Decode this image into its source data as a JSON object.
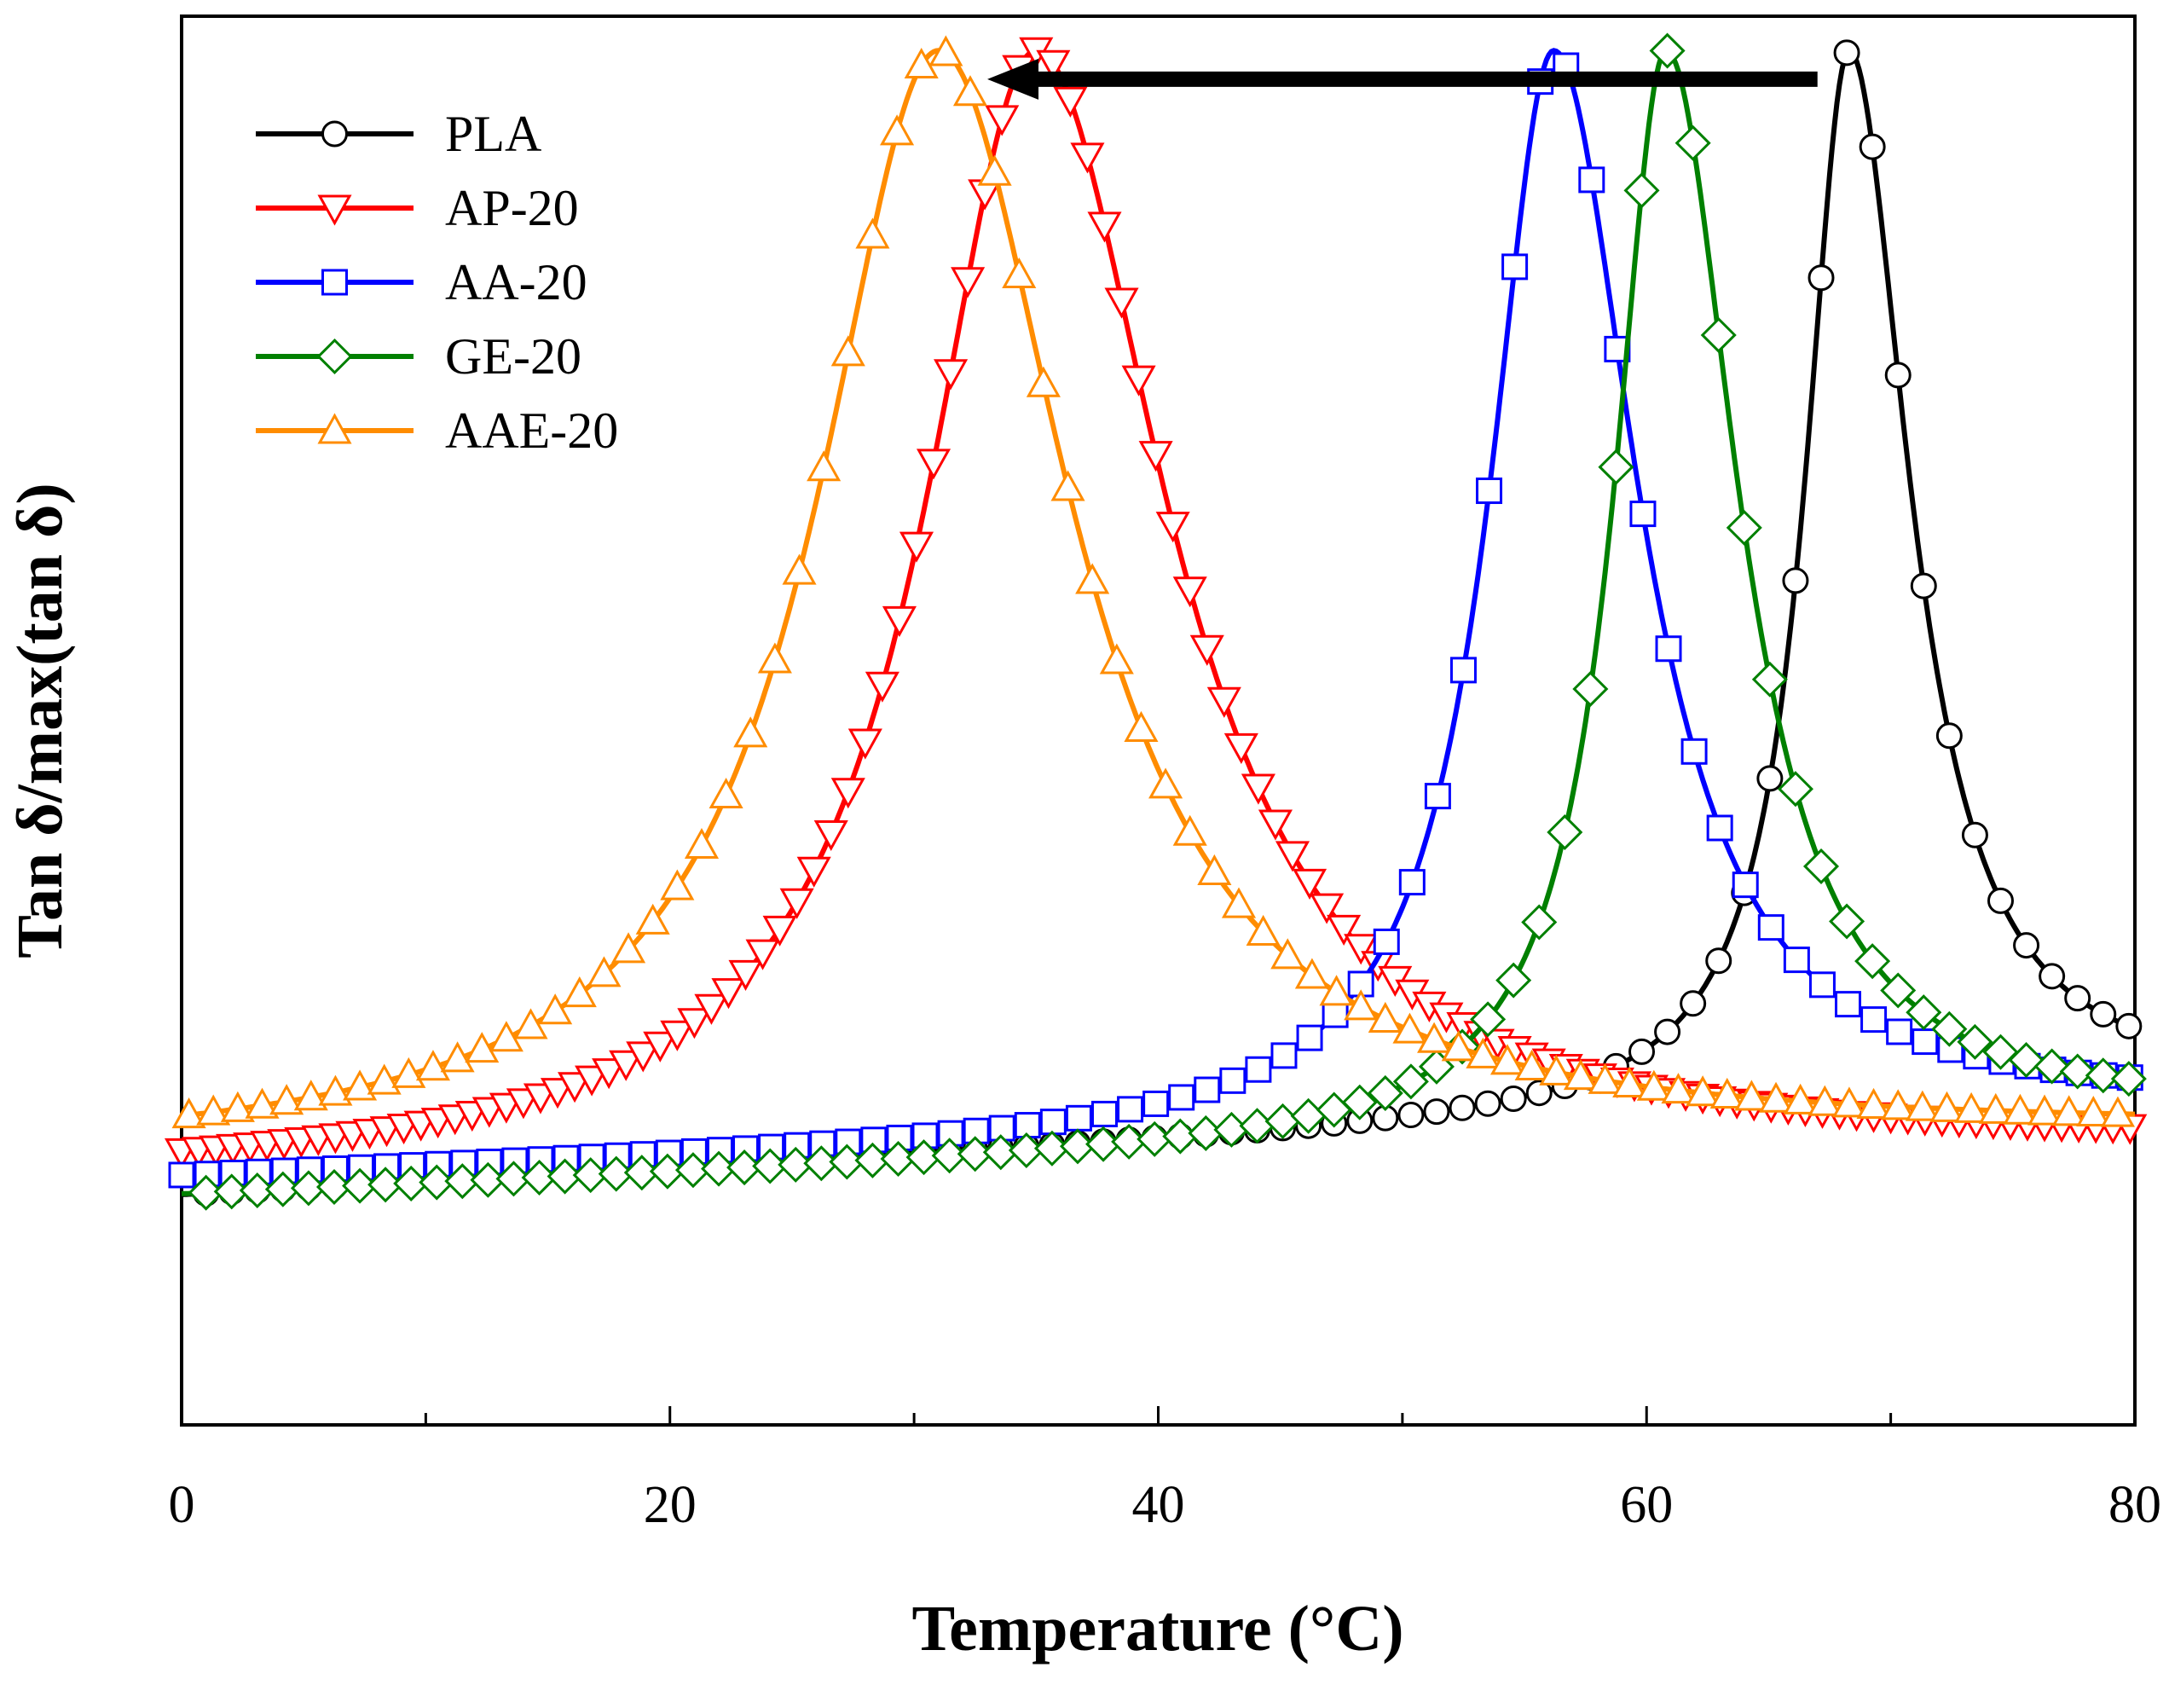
{
  "chart_data": {
    "type": "line",
    "title": "",
    "xlabel": "Temperature (°C)",
    "ylabel": "Tan δ/max(tan δ)",
    "xlim": [
      0,
      80
    ],
    "ylim": [
      -0.2,
      1.03
    ],
    "x_ticks": [
      0,
      20,
      40,
      60,
      80
    ],
    "x_tick_labels": [
      "0",
      "20",
      "40",
      "60",
      "80"
    ],
    "y_ticks_labeled": false,
    "grid": false,
    "legend_position": "top-left",
    "annotation": "arrow pointing from right to left (peak shift to lower temperature)",
    "annotation_arrow": {
      "from_x": 67,
      "to_x": 33,
      "y": 0.975
    },
    "series": [
      {
        "name": "PLA",
        "color": "#000000",
        "marker": "circle",
        "peak_x": 68.3,
        "width_left": 2.2,
        "width_right": 3.0,
        "baseline_start": 0.0,
        "baseline_end": 0.09,
        "marker_step": 1.05,
        "marker_start": 1.0
      },
      {
        "name": "AP-20",
        "color": "#ff0000",
        "marker": "triangle-down",
        "peak_x": 35.0,
        "width_left": 5.5,
        "width_right": 6.5,
        "baseline_start": 0.015,
        "baseline_end": 0.04,
        "marker_step": 0.7,
        "marker_start": 0.0
      },
      {
        "name": "AA-20",
        "color": "#0000ff",
        "marker": "square",
        "peak_x": 56.2,
        "width_left": 3.2,
        "width_right": 4.2,
        "baseline_start": 0.015,
        "baseline_end": 0.075,
        "marker_step": 1.05,
        "marker_start": 0.0
      },
      {
        "name": "GE-20",
        "color": "#008000",
        "marker": "diamond",
        "peak_x": 60.8,
        "width_left": 2.6,
        "width_right": 3.6,
        "baseline_start": 0.0,
        "baseline_end": 0.07,
        "marker_step": 1.05,
        "marker_start": 1.0
      },
      {
        "name": "AAE-20",
        "color": "#ff8c00",
        "marker": "triangle-up",
        "peak_x": 31.0,
        "width_left": 6.0,
        "width_right": 6.5,
        "baseline_start": 0.035,
        "baseline_end": 0.055,
        "marker_step": 1.0,
        "marker_start": 0.3
      }
    ]
  }
}
